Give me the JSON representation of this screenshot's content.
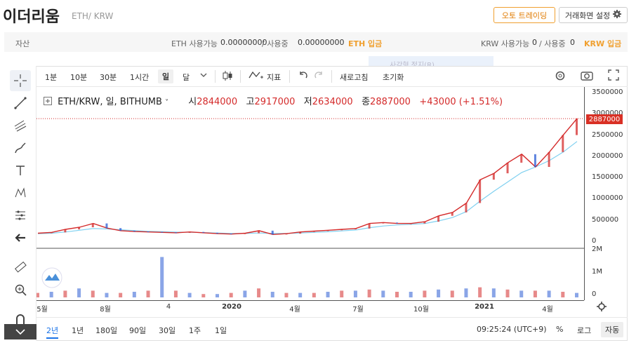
{
  "header": {
    "title": "이더리움",
    "pair": "ETH/ KRW",
    "auto_trade_label": "오토 트레이딩",
    "screen_settings_label": "거래화면 설정"
  },
  "assets": {
    "label": "자산",
    "eth_available_label": "ETH 사용가능",
    "eth_available": "0.00000000",
    "eth_in_use_label": "/ 사용중",
    "eth_in_use": "0.00000000",
    "eth_deposit": "ETH 입금",
    "krw_available_label": "KRW 사용가능",
    "krw_available": "0",
    "krw_in_use_label": "/ 사용중",
    "krw_in_use": "0",
    "krw_deposit": "KRW 입금"
  },
  "faded_tooltip": "사각형 정지(R)",
  "toolbar": {
    "intervals": [
      "1분",
      "10분",
      "30분",
      "1시간",
      "일",
      "달"
    ],
    "selected_interval": "일",
    "indicator_label": "지표",
    "refresh_label": "새로고침",
    "reset_label": "초기화"
  },
  "legend": {
    "symbol": "ETH/KRW, 일, BITHUMB",
    "open_label": "시",
    "open": "2844000",
    "high_label": "고",
    "high": "2917000",
    "low_label": "저",
    "low": "2634000",
    "close_label": "종",
    "close": "2887000",
    "change": "+43000 (+1.51%)"
  },
  "price_tag": "2887000",
  "colors": {
    "up": "#d42a2a",
    "down": "#2a5bd4",
    "ma_short": "#f08080",
    "ma_long": "#7fd0f0",
    "accent": "#f0a030"
  },
  "bottombar": {
    "ranges": [
      "2년",
      "1년",
      "180일",
      "90일",
      "30일",
      "1주",
      "1일"
    ],
    "selected_range": "2년",
    "time": "09:25:24 (UTC+9)",
    "percent_label": "%",
    "log_label": "로그",
    "auto_label": "자동"
  },
  "chart_data": {
    "type": "line",
    "title": "",
    "ylim": [
      0,
      3500000
    ],
    "y_ticks": [
      "3500000",
      "3000000",
      "2500000",
      "2000000",
      "1500000",
      "1000000",
      "500000",
      "0"
    ],
    "volume_ticks": [
      "2M",
      "1M",
      "0"
    ],
    "x_ticks": [
      "5월",
      "8월",
      "4",
      "2020",
      "4월",
      "7월",
      "10월",
      "2021",
      "4월"
    ],
    "series": [
      {
        "values": [
          190000,
          210000,
          280000,
          330000,
          420000,
          310000,
          250000,
          230000,
          220000,
          210000,
          200000,
          220000,
          200000,
          180000,
          170000,
          190000,
          250000,
          160000,
          180000,
          220000,
          240000,
          260000,
          280000,
          300000,
          420000,
          440000,
          420000,
          420000,
          460000,
          600000,
          680000,
          900000,
          1450000,
          1600000,
          1850000,
          2050000,
          1750000,
          2100000,
          2500000,
          2887000
        ]
      },
      {
        "values": [
          180000,
          190000,
          220000,
          260000,
          300000,
          290000,
          270000,
          250000,
          235000,
          225000,
          215000,
          212000,
          205000,
          195000,
          185000,
          185000,
          195000,
          185000,
          185000,
          195000,
          210000,
          225000,
          245000,
          265000,
          320000,
          360000,
          385000,
          400000,
          420000,
          480000,
          560000,
          700000,
          950000,
          1180000,
          1400000,
          1620000,
          1750000,
          1900000,
          2100000,
          2350000
        ]
      }
    ],
    "volume": [
      0.2,
      0.25,
      0.3,
      0.4,
      0.3,
      0.2,
      0.2,
      0.25,
      0.3,
      1.8,
      0.3,
      0.2,
      0.15,
      0.15,
      0.2,
      0.3,
      0.4,
      0.25,
      0.2,
      0.2,
      0.2,
      0.25,
      0.3,
      0.3,
      0.35,
      0.3,
      0.25,
      0.25,
      0.3,
      0.35,
      0.3,
      0.4,
      0.45,
      0.4,
      0.35,
      0.3,
      0.3,
      0.3,
      0.25,
      0.2
    ]
  }
}
